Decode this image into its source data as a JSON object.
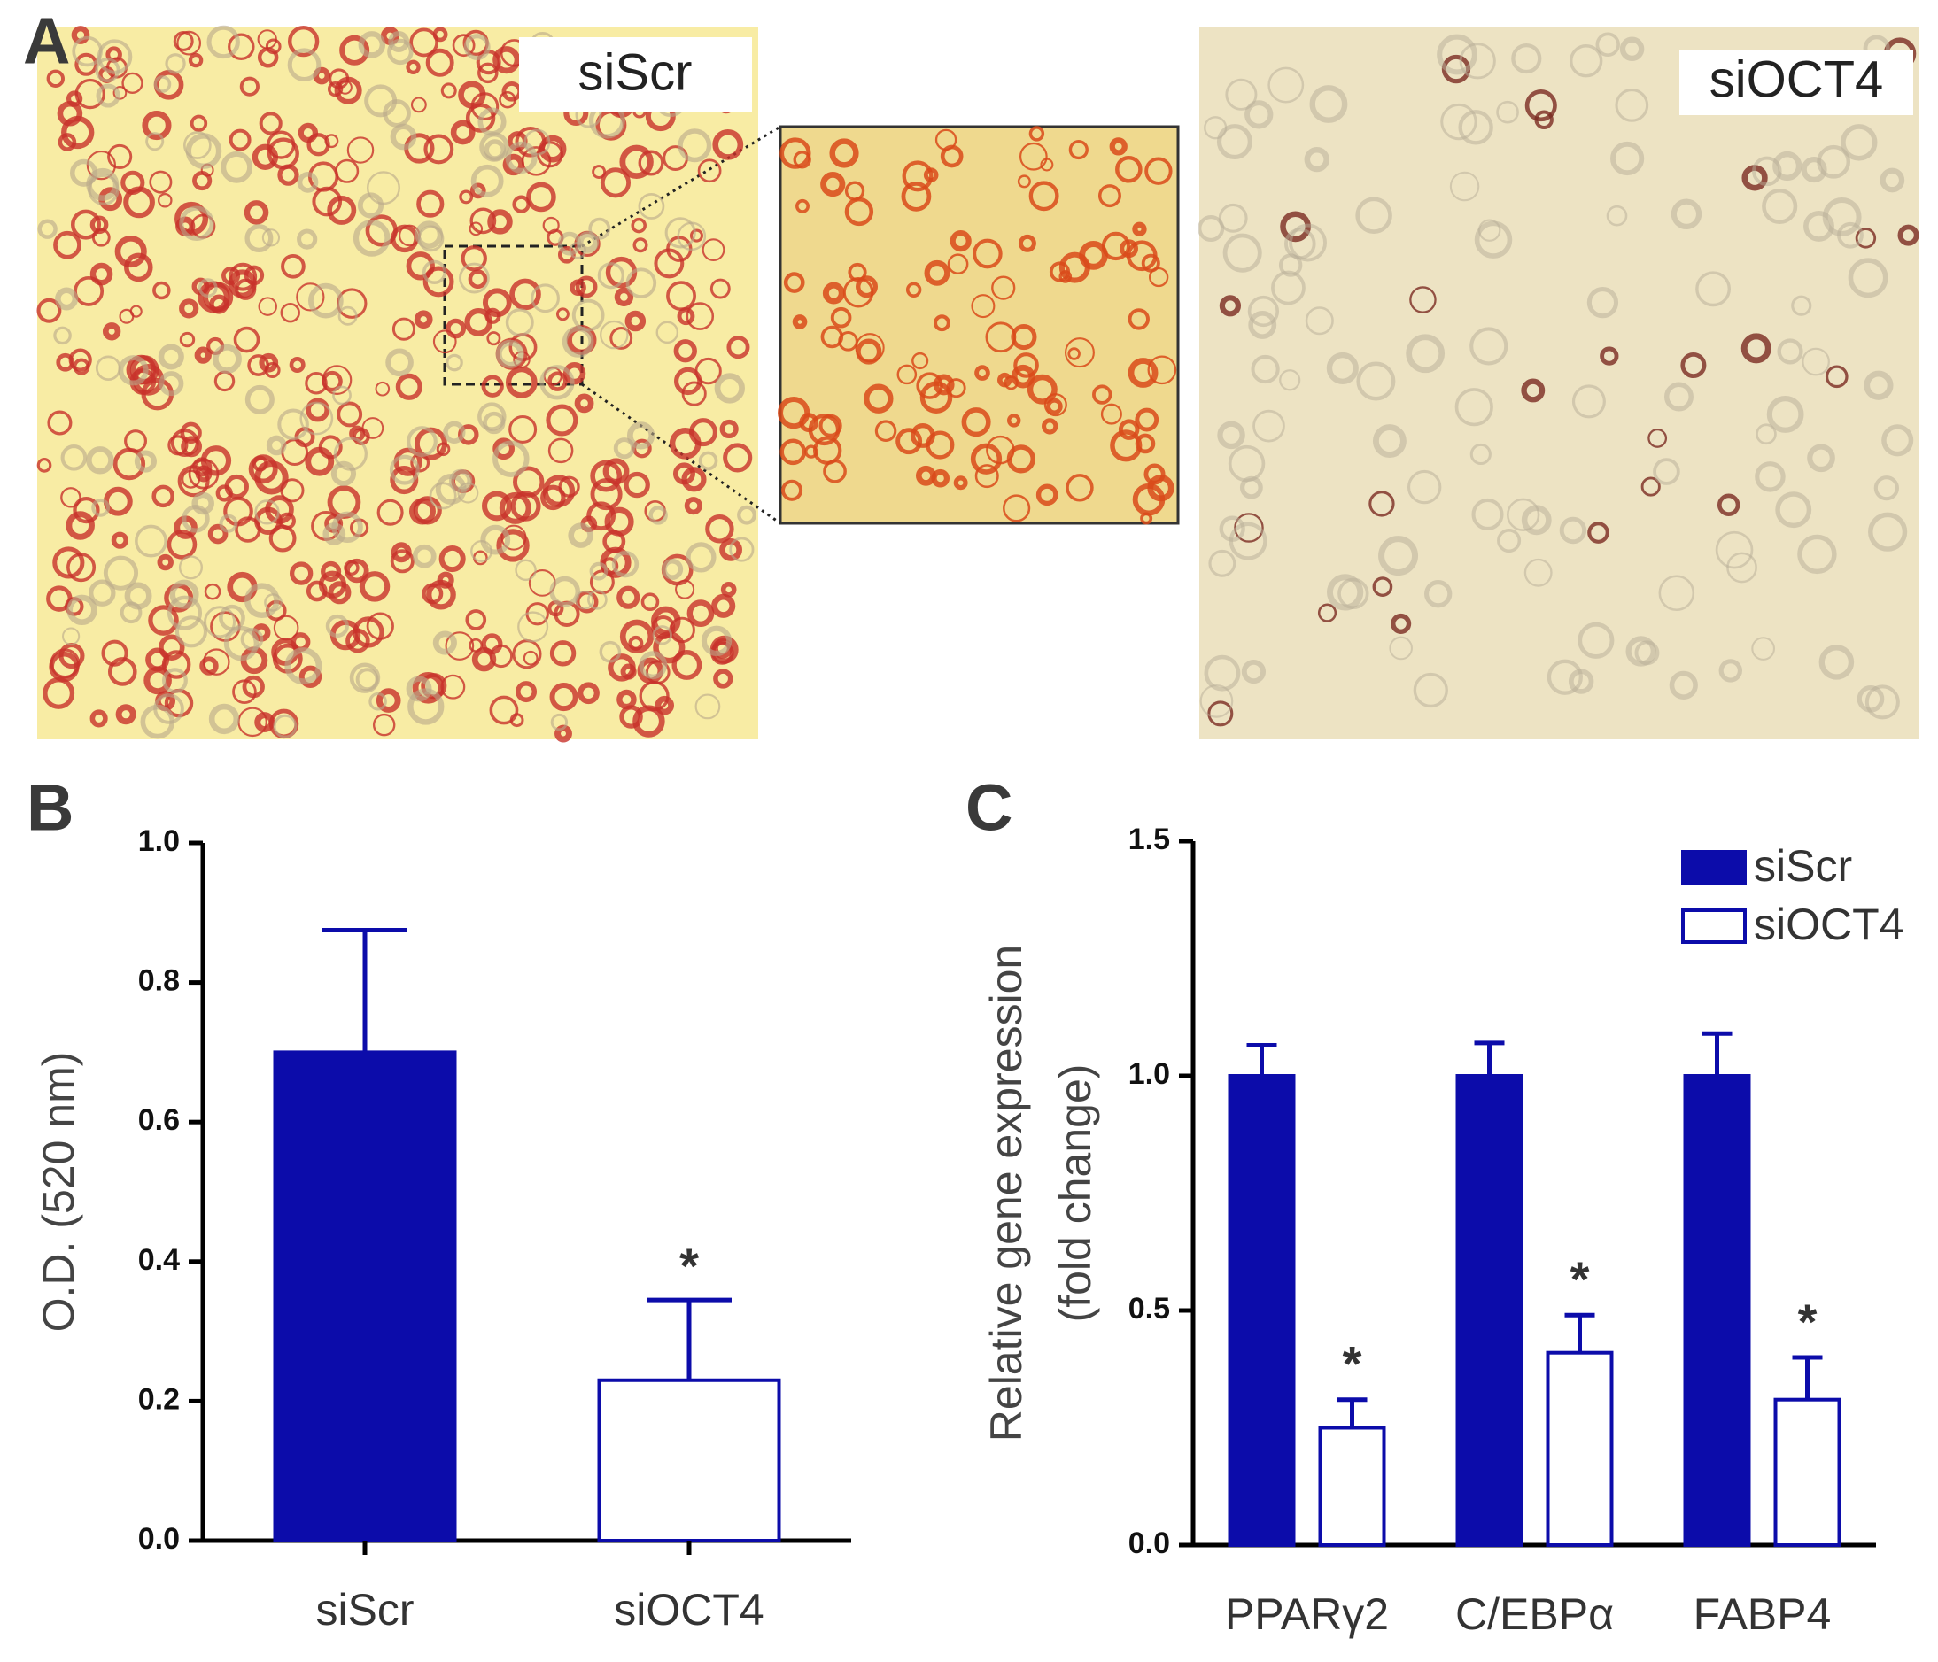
{
  "panel_labels": [
    "A",
    "B",
    "C"
  ],
  "image_labels": [
    "siScr",
    "siOCT4"
  ],
  "chart_data": [
    {
      "type": "bar",
      "categories": [
        "siScr",
        "siOCT4"
      ],
      "values": [
        0.7,
        0.23
      ],
      "errors": [
        0.175,
        0.115
      ],
      "color": "#0c0caa",
      "fills": [
        "#0c0caa",
        "#ffffff"
      ],
      "significance": [
        null,
        "*"
      ],
      "ylabel": [
        "O.D. (520 nm)"
      ],
      "ylim": [
        0,
        1
      ],
      "yticks": [
        {
          "value": 0,
          "label": "0.0"
        },
        0.2,
        0.4,
        0.6,
        0.8,
        {
          "value": 1,
          "label": "1.0"
        }
      ]
    },
    {
      "type": "grouped-bar",
      "categories": [
        "PPARγ2",
        "C/EBPα",
        "FABP4"
      ],
      "series": [
        {
          "name": "siScr",
          "color": "#0c0caa",
          "filled": true,
          "values": [
            1.0,
            1.0,
            1.0
          ],
          "errors": [
            0.065,
            0.07,
            0.09
          ],
          "significance": [
            null,
            null,
            null
          ]
        },
        {
          "name": "siOCT4",
          "color": "#0c0caa",
          "filled": false,
          "values": [
            0.25,
            0.41,
            0.31
          ],
          "errors": [
            0.06,
            0.08,
            0.09
          ],
          "significance": [
            "*",
            "*",
            "*"
          ]
        }
      ],
      "ylabel": [
        "Relative gene expression",
        "(fold change)"
      ],
      "ylim": [
        0,
        1.5
      ],
      "yticks": [
        {
          "value": 0,
          "label": "0.0"
        },
        0.5,
        {
          "value": 1,
          "label": "1.0"
        },
        {
          "value": 1.5,
          "label": "1.5"
        }
      ],
      "legend": "top-right"
    }
  ]
}
